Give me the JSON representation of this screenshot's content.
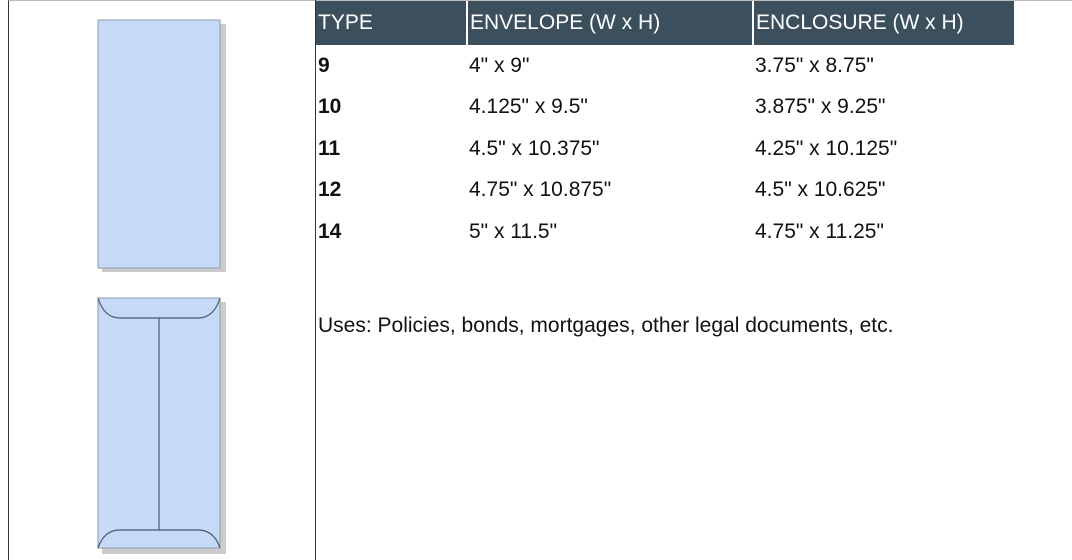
{
  "table": {
    "header": [
      "TYPE",
      "ENVELOPE (W x H)",
      "ENCLOSURE (W x H)"
    ],
    "rows": [
      [
        "9",
        "4\" x 9\"",
        "3.75\" x 8.75\""
      ],
      [
        "10",
        "4.125\" x 9.5\"",
        "3.875\" x 9.25\""
      ],
      [
        "11",
        "4.5\" x 10.375\"",
        "4.25\" x 10.125\""
      ],
      [
        "12",
        "4.75\" x 10.875\"",
        "4.5\" x 10.625\""
      ],
      [
        "14",
        "5\" x 11.5\"",
        "4.75\" x 11.25\""
      ]
    ]
  },
  "uses": "Uses: Policies, bonds, mortgages, other legal documents, etc."
}
